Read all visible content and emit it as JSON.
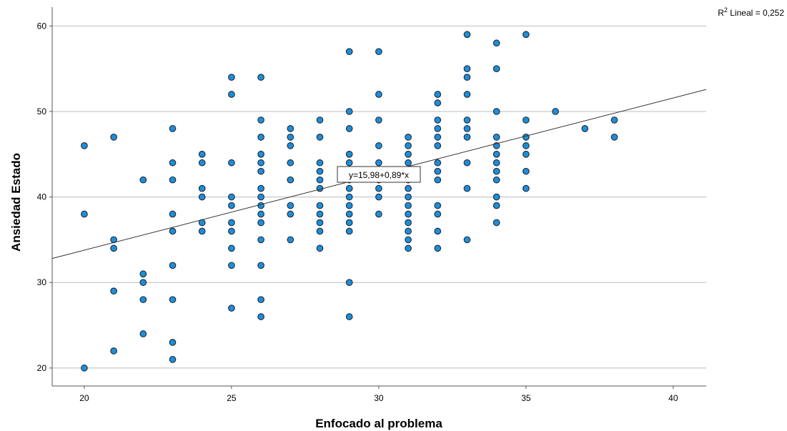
{
  "chart_data": {
    "type": "scatter",
    "x_label": "Enfocado al problema",
    "y_label": "Ansiedad Estado",
    "xlim": [
      18.91,
      41.12
    ],
    "ylim": [
      17.9,
      62.2
    ],
    "xticks": [
      20,
      25,
      30,
      35,
      40
    ],
    "yticks": [
      20,
      30,
      40,
      50,
      60
    ],
    "grid": true,
    "series": [
      {
        "color": "#1f8ed8",
        "x": [
          20,
          20,
          20,
          21,
          21,
          21,
          21,
          21,
          22,
          22,
          22,
          22,
          22,
          23,
          23,
          23,
          23,
          23,
          23,
          23,
          23,
          23,
          24,
          24,
          24,
          24,
          24,
          24,
          25,
          25,
          25,
          25,
          25,
          25,
          25,
          25,
          25,
          25,
          26,
          26,
          26,
          26,
          26,
          26,
          26,
          26,
          26,
          26,
          26,
          26,
          26,
          26,
          26,
          27,
          27,
          27,
          27,
          27,
          27,
          27,
          27,
          28,
          28,
          28,
          28,
          28,
          28,
          28,
          28,
          28,
          28,
          28,
          29,
          29,
          29,
          29,
          29,
          29,
          29,
          29,
          29,
          29,
          29,
          29,
          29,
          29,
          29,
          30,
          30,
          30,
          30,
          30,
          30,
          30,
          30,
          30,
          31,
          31,
          31,
          31,
          31,
          31,
          31,
          31,
          31,
          31,
          31,
          31,
          31,
          31,
          32,
          32,
          32,
          32,
          32,
          32,
          32,
          32,
          32,
          32,
          32,
          32,
          32,
          33,
          33,
          33,
          33,
          33,
          33,
          33,
          33,
          33,
          33,
          34,
          34,
          34,
          34,
          34,
          34,
          34,
          34,
          34,
          34,
          34,
          34,
          35,
          35,
          35,
          35,
          35,
          35,
          35,
          36,
          37,
          38,
          38
        ],
        "y": [
          46,
          38,
          20,
          47,
          35,
          34,
          29,
          22,
          42,
          31,
          30,
          28,
          24,
          48,
          44,
          42,
          38,
          36,
          32,
          28,
          23,
          21,
          45,
          44,
          41,
          40,
          37,
          36,
          54,
          52,
          44,
          40,
          39,
          37,
          36,
          34,
          32,
          27,
          54,
          49,
          47,
          45,
          44,
          43,
          41,
          40,
          39,
          38,
          37,
          35,
          32,
          28,
          26,
          48,
          47,
          46,
          44,
          42,
          39,
          38,
          35,
          49,
          47,
          44,
          43,
          42,
          41,
          39,
          38,
          37,
          36,
          34,
          57,
          50,
          48,
          45,
          44,
          43,
          42,
          41,
          40,
          39,
          38,
          37,
          36,
          30,
          26,
          57,
          52,
          49,
          46,
          44,
          42,
          41,
          40,
          38,
          47,
          46,
          45,
          44,
          43,
          42,
          41,
          40,
          39,
          38,
          37,
          36,
          35,
          34,
          52,
          51,
          49,
          48,
          47,
          46,
          44,
          43,
          42,
          39,
          38,
          36,
          34,
          59,
          55,
          54,
          52,
          49,
          48,
          47,
          44,
          41,
          35,
          58,
          55,
          50,
          47,
          46,
          45,
          44,
          43,
          42,
          40,
          39,
          37,
          59,
          49,
          47,
          46,
          45,
          43,
          41,
          50,
          48,
          49,
          47
        ]
      }
    ],
    "fit": {
      "intercept": 15.98,
      "slope": 0.89,
      "label": "y=15,98+0,89*x"
    },
    "r2_label": {
      "base": "R",
      "sup": "2",
      "text": " Lineal = 0,252"
    }
  }
}
